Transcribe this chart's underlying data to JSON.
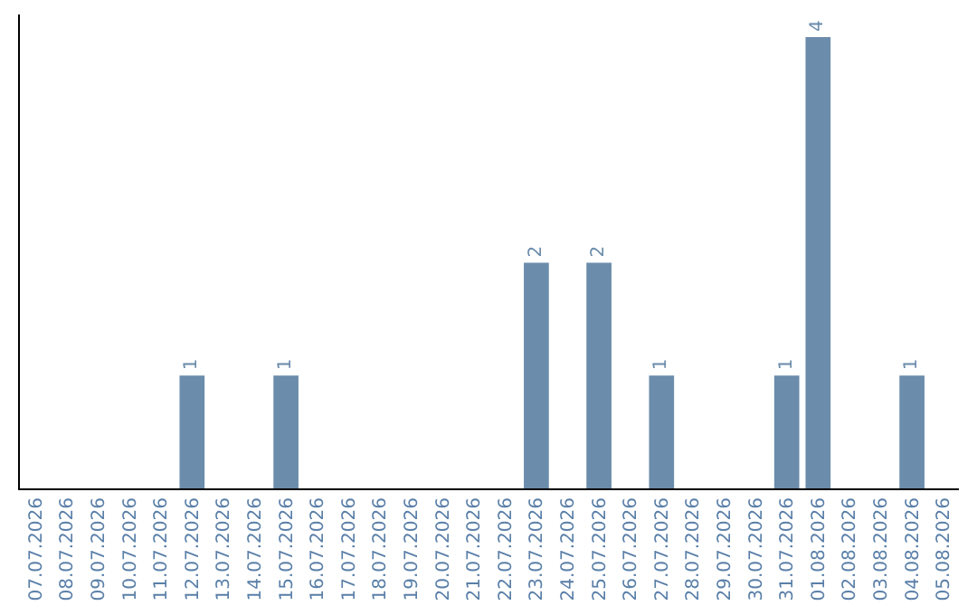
{
  "chart_data": {
    "type": "bar",
    "categories": [
      "07.07.2026",
      "08.07.2026",
      "09.07.2026",
      "10.07.2026",
      "11.07.2026",
      "12.07.2026",
      "13.07.2026",
      "14.07.2026",
      "15.07.2026",
      "16.07.2026",
      "17.07.2026",
      "18.07.2026",
      "19.07.2026",
      "20.07.2026",
      "21.07.2026",
      "22.07.2026",
      "23.07.2026",
      "24.07.2026",
      "25.07.2026",
      "26.07.2026",
      "27.07.2026",
      "28.07.2026",
      "29.07.2026",
      "30.07.2026",
      "31.07.2026",
      "01.08.2026",
      "02.08.2026",
      "03.08.2026",
      "04.08.2026",
      "05.08.2026"
    ],
    "values": [
      0,
      0,
      0,
      0,
      0,
      1,
      0,
      0,
      1,
      0,
      0,
      0,
      0,
      0,
      0,
      0,
      2,
      0,
      2,
      0,
      1,
      0,
      0,
      0,
      1,
      4,
      0,
      0,
      1,
      0
    ],
    "value_labels": [
      null,
      null,
      null,
      null,
      null,
      "1",
      null,
      null,
      "1",
      null,
      null,
      null,
      null,
      null,
      null,
      null,
      "2",
      null,
      "2",
      null,
      "1",
      null,
      null,
      null,
      "1",
      "4",
      null,
      null,
      "1",
      null
    ],
    "color": "#6b8cab",
    "ylim": [
      0,
      4.2
    ],
    "tick_labels": "x",
    "grid": false
  }
}
